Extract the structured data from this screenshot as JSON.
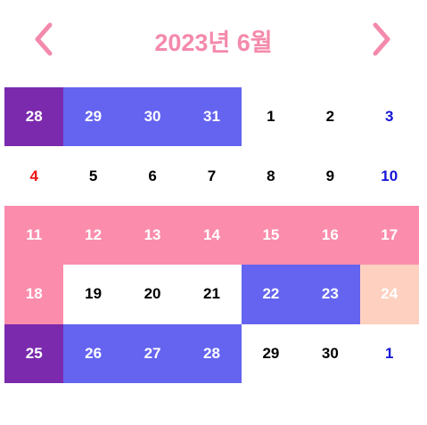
{
  "header": {
    "title": "2023년 6월",
    "prev_icon": "chevron-left-icon",
    "next_icon": "chevron-right-icon"
  },
  "colors": {
    "accent": "#f48aab",
    "purple": "#7b2aad",
    "blue": "#6464f0",
    "pink": "#fb8cac",
    "peach": "#fdd0c0",
    "sunday": "#ee1111",
    "saturday": "#1515d6",
    "weekday": "#000000",
    "selected_text": "#ffffff"
  },
  "weeks": [
    [
      {
        "day": "28",
        "bg": "purple",
        "fg": "selected_text"
      },
      {
        "day": "29",
        "bg": "blue",
        "fg": "selected_text"
      },
      {
        "day": "30",
        "bg": "blue",
        "fg": "selected_text"
      },
      {
        "day": "31",
        "bg": "blue",
        "fg": "selected_text"
      },
      {
        "day": "1",
        "bg": "none",
        "fg": "weekday"
      },
      {
        "day": "2",
        "bg": "none",
        "fg": "weekday"
      },
      {
        "day": "3",
        "bg": "none",
        "fg": "saturday"
      }
    ],
    [
      {
        "day": "4",
        "bg": "none",
        "fg": "sunday"
      },
      {
        "day": "5",
        "bg": "none",
        "fg": "weekday"
      },
      {
        "day": "6",
        "bg": "none",
        "fg": "weekday"
      },
      {
        "day": "7",
        "bg": "none",
        "fg": "weekday"
      },
      {
        "day": "8",
        "bg": "none",
        "fg": "weekday"
      },
      {
        "day": "9",
        "bg": "none",
        "fg": "weekday"
      },
      {
        "day": "10",
        "bg": "none",
        "fg": "saturday"
      }
    ],
    [
      {
        "day": "11",
        "bg": "pink",
        "fg": "selected_text"
      },
      {
        "day": "12",
        "bg": "pink",
        "fg": "selected_text"
      },
      {
        "day": "13",
        "bg": "pink",
        "fg": "selected_text"
      },
      {
        "day": "14",
        "bg": "pink",
        "fg": "selected_text"
      },
      {
        "day": "15",
        "bg": "pink",
        "fg": "selected_text"
      },
      {
        "day": "16",
        "bg": "pink",
        "fg": "selected_text"
      },
      {
        "day": "17",
        "bg": "pink",
        "fg": "selected_text"
      }
    ],
    [
      {
        "day": "18",
        "bg": "pink",
        "fg": "selected_text"
      },
      {
        "day": "19",
        "bg": "none",
        "fg": "weekday"
      },
      {
        "day": "20",
        "bg": "none",
        "fg": "weekday"
      },
      {
        "day": "21",
        "bg": "none",
        "fg": "weekday"
      },
      {
        "day": "22",
        "bg": "blue",
        "fg": "selected_text"
      },
      {
        "day": "23",
        "bg": "blue",
        "fg": "selected_text"
      },
      {
        "day": "24",
        "bg": "peach",
        "fg": "selected_text"
      }
    ],
    [
      {
        "day": "25",
        "bg": "purple",
        "fg": "selected_text"
      },
      {
        "day": "26",
        "bg": "blue",
        "fg": "selected_text"
      },
      {
        "day": "27",
        "bg": "blue",
        "fg": "selected_text"
      },
      {
        "day": "28",
        "bg": "blue",
        "fg": "selected_text"
      },
      {
        "day": "29",
        "bg": "none",
        "fg": "weekday"
      },
      {
        "day": "30",
        "bg": "none",
        "fg": "weekday"
      },
      {
        "day": "1",
        "bg": "none",
        "fg": "saturday"
      }
    ]
  ]
}
